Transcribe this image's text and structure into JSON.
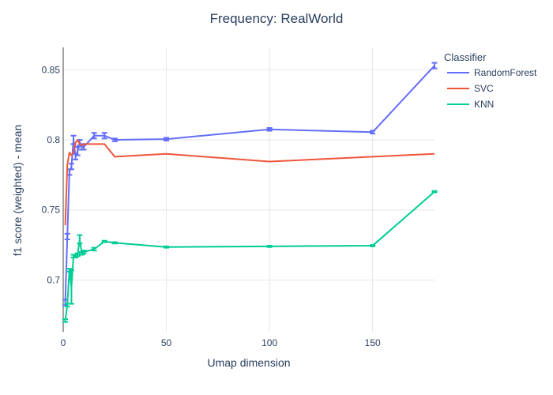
{
  "chart_data": {
    "type": "line",
    "title": "Frequency: RealWorld",
    "xlabel": "Umap dimension",
    "ylabel": "f1 score (weighted) - mean",
    "xlim": [
      0,
      180
    ],
    "ylim": [
      0.663,
      0.866
    ],
    "xticks": [
      0,
      50,
      100,
      150
    ],
    "yticks": [
      0.7,
      0.75,
      0.8,
      0.85
    ],
    "xtick_labels": [
      "0",
      "50",
      "100",
      "150"
    ],
    "ytick_labels": [
      "0.7",
      "0.75",
      "0.8",
      "0.85"
    ],
    "grid": true,
    "legend": {
      "title": "Classifier",
      "placement": "top-right"
    },
    "series": [
      {
        "name": "RandomForest",
        "color": "#636efa",
        "x": [
          1,
          2,
          3,
          4,
          5,
          6,
          7,
          8,
          9,
          10,
          15,
          20,
          25,
          50,
          100,
          150,
          180
        ],
        "y": [
          0.684,
          0.731,
          0.777,
          0.781,
          0.8,
          0.788,
          0.792,
          0.798,
          0.795,
          0.795,
          0.803,
          0.803,
          0.8,
          0.8005,
          0.8075,
          0.8055,
          0.853
        ],
        "err": [
          0.002,
          0.002,
          0.002,
          0.002,
          0.003,
          0.002,
          0.003,
          0.002,
          0.002,
          0.002,
          0.002,
          0.002,
          0.001,
          0.001,
          0.001,
          0.001,
          0.002
        ]
      },
      {
        "name": "SVC",
        "color": "#ef553b",
        "x": [
          1,
          2,
          3,
          4,
          5,
          6,
          7,
          8,
          9,
          10,
          15,
          20,
          25,
          50,
          100,
          150,
          180
        ],
        "y": [
          0.739,
          0.782,
          0.791,
          0.789,
          0.791,
          0.798,
          0.8,
          0.797,
          0.796,
          0.797,
          0.797,
          0.797,
          0.788,
          0.79,
          0.7845,
          0.788,
          0.79
        ],
        "err": [
          0,
          0,
          0,
          0,
          0,
          0,
          0,
          0,
          0,
          0,
          0,
          0,
          0,
          0,
          0,
          0,
          0
        ]
      },
      {
        "name": "KNN",
        "color": "#00cc96",
        "x": [
          1,
          2,
          3,
          4,
          5,
          6,
          7,
          8,
          9,
          10,
          15,
          20,
          25,
          50,
          100,
          150,
          180
        ],
        "y": [
          0.671,
          0.682,
          0.707,
          0.695,
          0.717,
          0.717,
          0.718,
          0.729,
          0.719,
          0.72,
          0.722,
          0.7275,
          0.7265,
          0.7235,
          0.724,
          0.7245,
          0.763
        ],
        "err": [
          0.001,
          0.001,
          0.001,
          0.012,
          0.001,
          0.001,
          0.001,
          0.003,
          0.001,
          0.001,
          0.001,
          0.0005,
          0.0005,
          0.0005,
          0.0005,
          0.0005,
          0.0005
        ]
      }
    ]
  }
}
